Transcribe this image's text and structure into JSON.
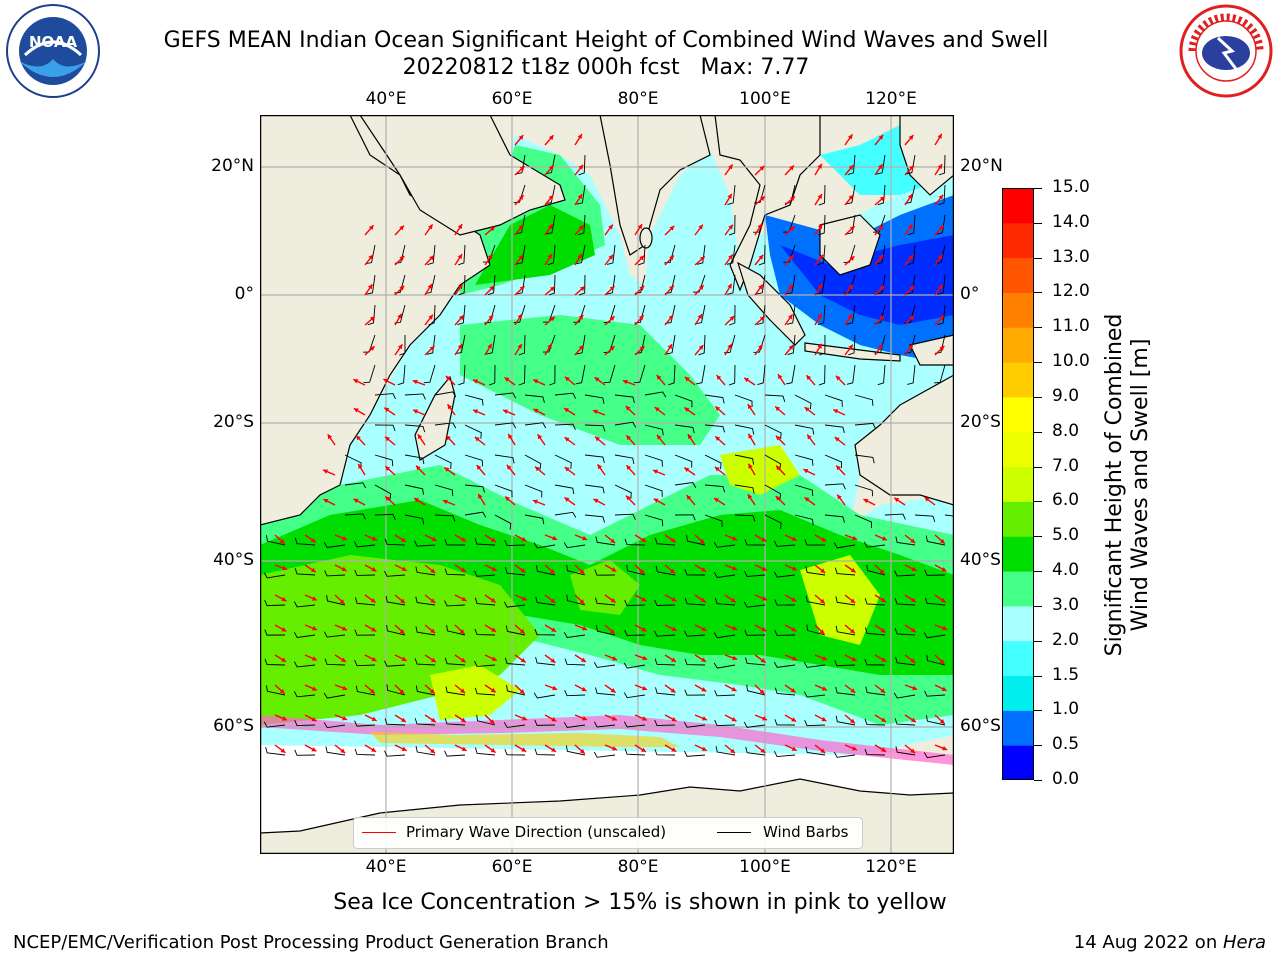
{
  "header": {
    "title_line1": "GEFS MEAN Indian Ocean Significant Height of Combined Wind Waves and Swell",
    "title_line2": "20220812 t18z 000h fcst   Max: 7.77"
  },
  "logos": {
    "left": {
      "name": "noaa-logo",
      "text": "NOAA"
    },
    "right": {
      "name": "nws-logo",
      "text": "NATIONAL WEATHER SERVICE"
    }
  },
  "map": {
    "lon_ticks": [
      "40°E",
      "60°E",
      "80°E",
      "100°E",
      "120°E"
    ],
    "lat_ticks": [
      "20°N",
      "0°",
      "20°S",
      "40°S",
      "60°S"
    ],
    "lon_range": [
      20,
      130
    ],
    "lat_range": [
      -74,
      27
    ],
    "grid": true,
    "colors": {
      "land": "#efedde",
      "ice_free_antarctic": "#ffffff",
      "grid": "#b0b0b0"
    }
  },
  "legend": {
    "items": [
      {
        "label": "Primary Wave Direction (unscaled)",
        "color": "#ff0000"
      },
      {
        "label": "Wind Barbs",
        "color": "#000000"
      }
    ]
  },
  "colorbar": {
    "label_line1": "Significant Height of Combined",
    "label_line2": "Wind Waves and Swell [m]",
    "ticks": [
      "0.0",
      "0.5",
      "1.0",
      "1.5",
      "2.0",
      "3.0",
      "4.0",
      "5.0",
      "6.0",
      "7.0",
      "8.0",
      "9.0",
      "10.0",
      "11.0",
      "12.0",
      "13.0",
      "14.0",
      "15.0"
    ],
    "colors": [
      "#0000ff",
      "#0070ff",
      "#00eeee",
      "#44ffff",
      "#aaffff",
      "#44ff88",
      "#00dd00",
      "#66ee00",
      "#ccff00",
      "#eeff00",
      "#ffff00",
      "#ffcc00",
      "#ffaa00",
      "#ff8000",
      "#ff5500",
      "#ff2a00",
      "#ff0000"
    ]
  },
  "footer": {
    "note": "Sea Ice Concentration > 15% is shown in pink to yellow",
    "left": "NCEP/EMC/Verification Post Processing Product Generation Branch",
    "right_prefix": "14 Aug 2022 on ",
    "right_italic": "Hera"
  }
}
